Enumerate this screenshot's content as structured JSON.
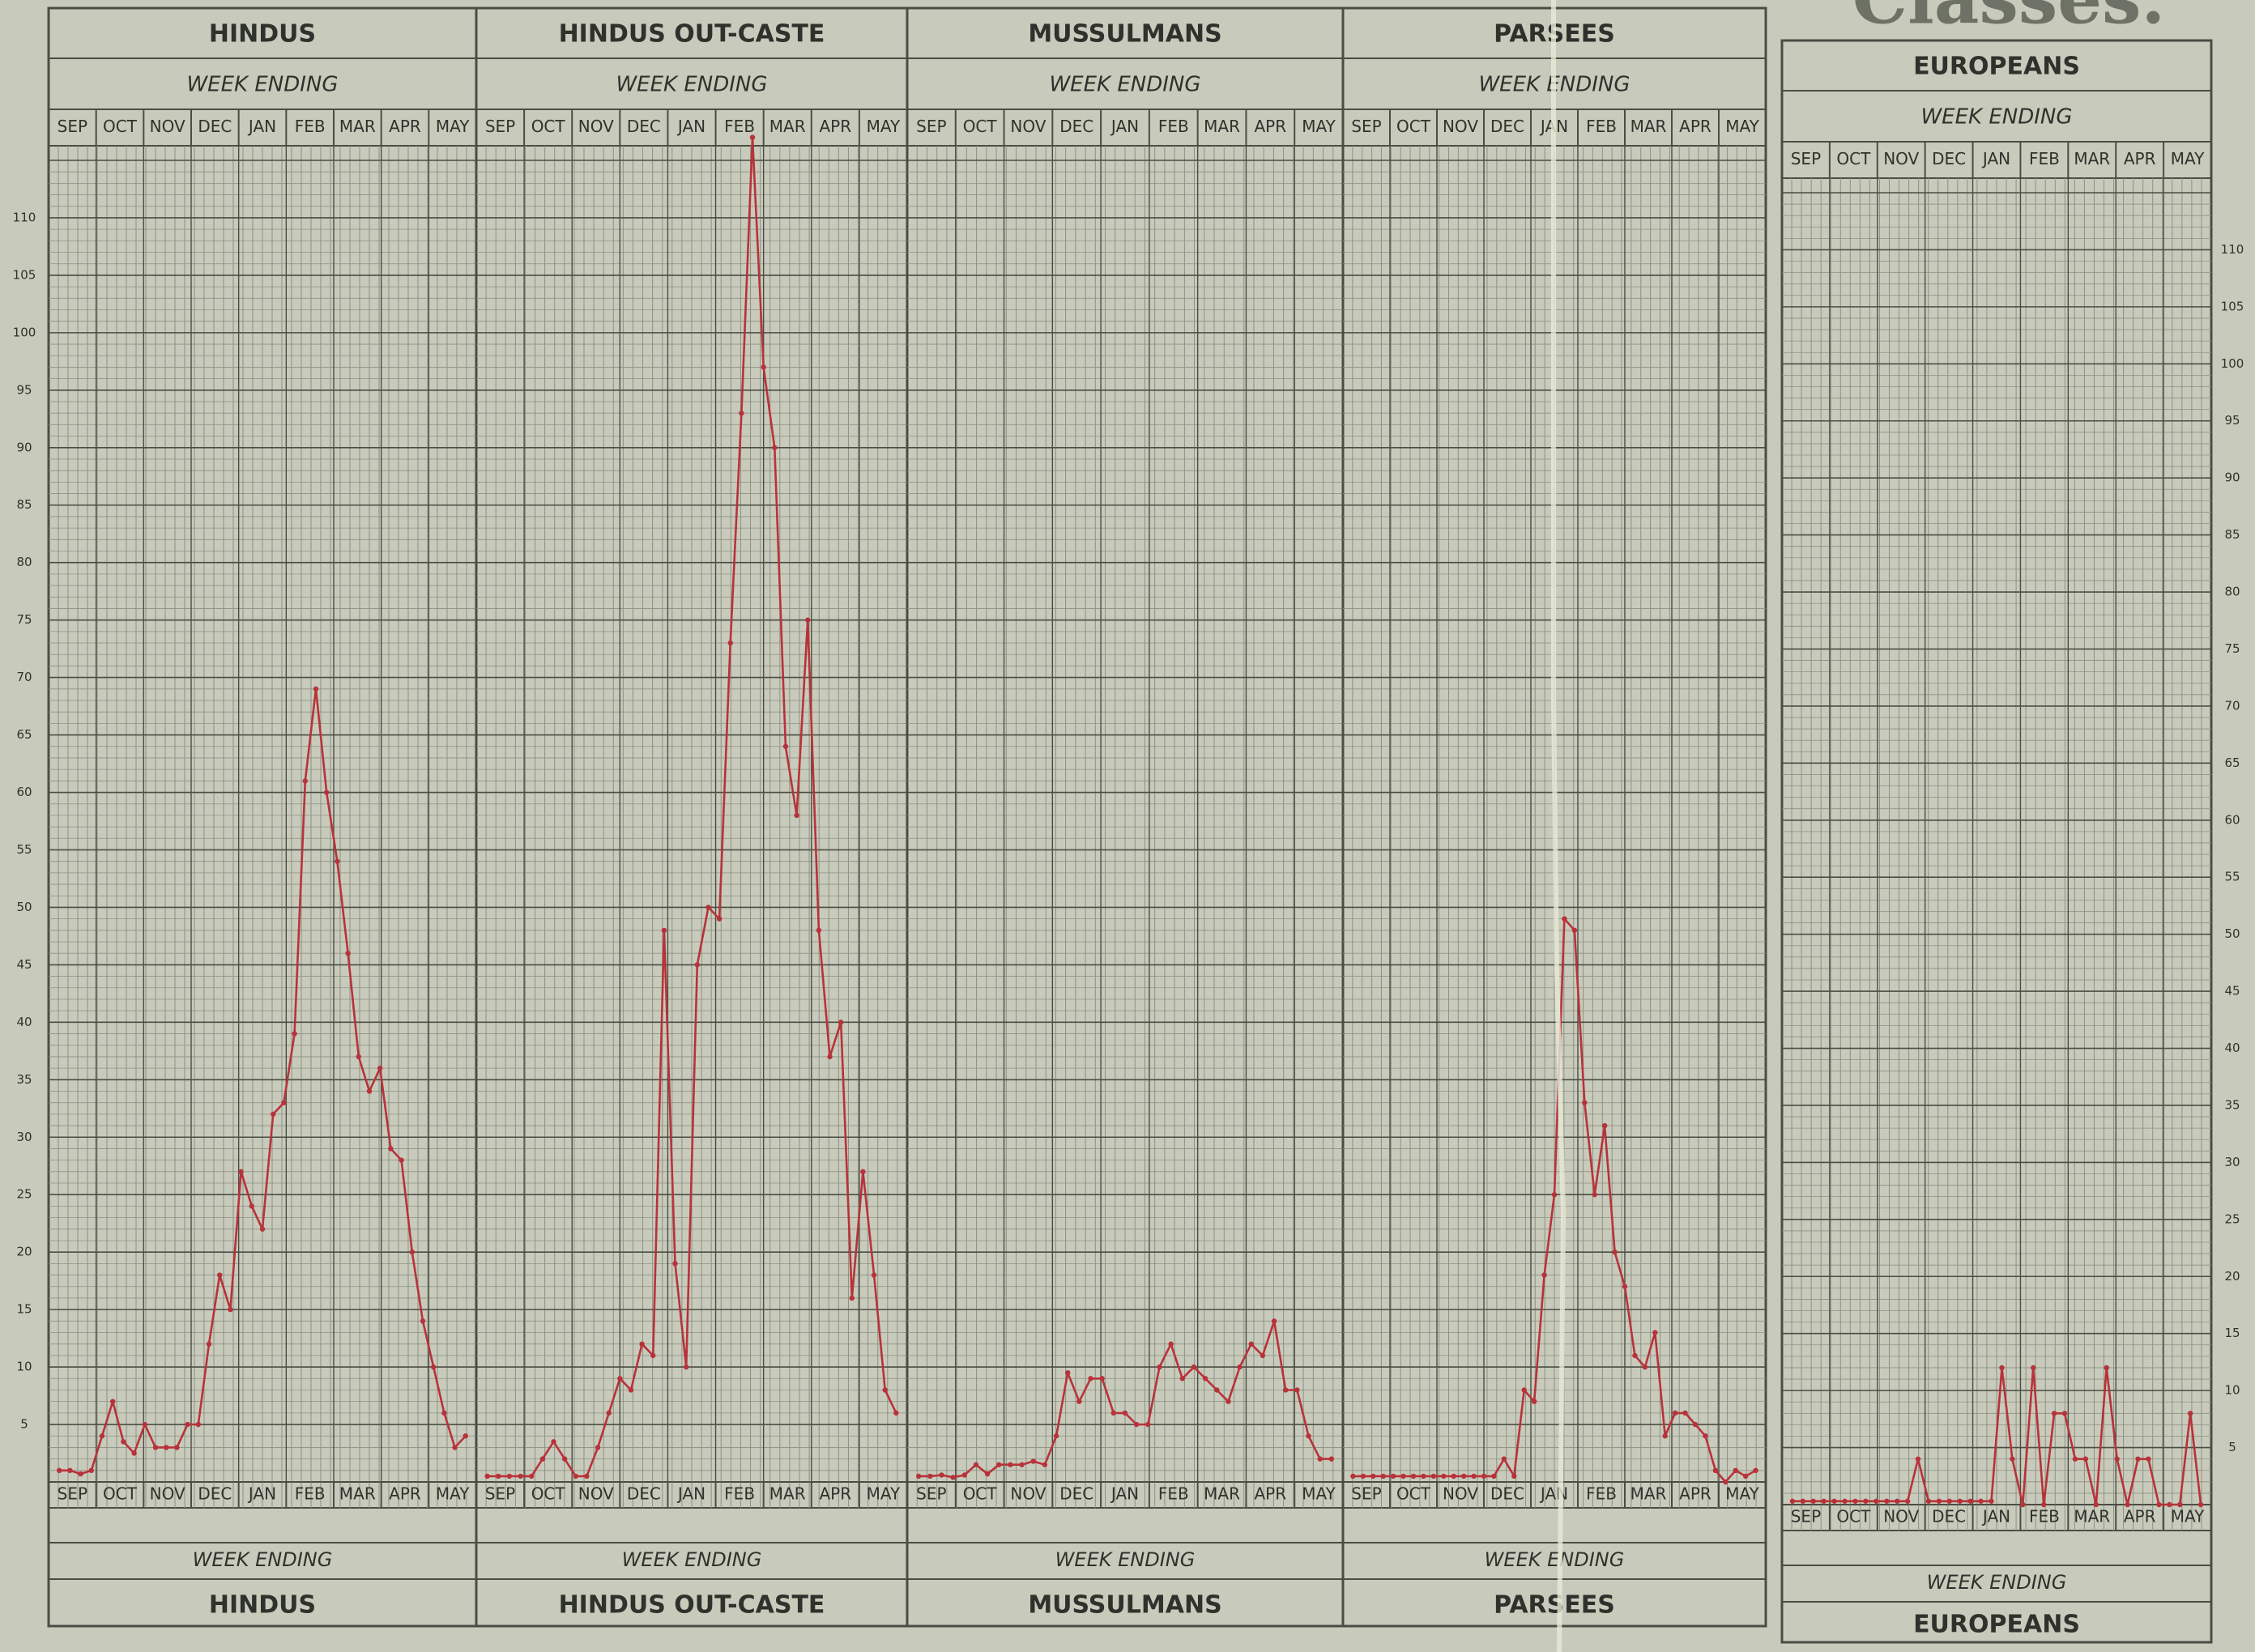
{
  "colors": {
    "paper": "#c8cbbb",
    "grid_minor": "#8d9184",
    "grid_major": "#4a4d44",
    "ink": "#2f322c",
    "line": "#b8323a"
  },
  "header_title_fragment": "Classes.",
  "week_ending": "WEEK ENDING",
  "chart_data": [
    {
      "type": "line",
      "title": "HINDUS",
      "footer": "HINDUS",
      "subtitle": "WEEK ENDING",
      "months": [
        "SEP",
        "OCT",
        "NOV",
        "DEC",
        "JAN",
        "FEB",
        "MAR",
        "APR",
        "MAY"
      ],
      "ylim": [
        0,
        115
      ],
      "yticks": [
        5,
        10,
        15,
        20,
        25,
        30,
        35,
        40,
        45,
        50,
        55,
        60,
        65,
        70,
        75,
        80,
        85,
        90,
        95,
        100,
        105,
        110
      ],
      "values": [
        1,
        1,
        0.7,
        1,
        4,
        7,
        3.5,
        2.5,
        5,
        3,
        3,
        3,
        5,
        5,
        12,
        18,
        15,
        27,
        24,
        22,
        32,
        33,
        39,
        61,
        69,
        60,
        54,
        46,
        37,
        34,
        36,
        29,
        28,
        20,
        14,
        10,
        6,
        3,
        4
      ]
    },
    {
      "type": "line",
      "title": "HINDUS OUT-CASTE",
      "footer": "HINDUS OUT-CASTE",
      "subtitle": "WEEK ENDING",
      "months": [
        "SEP",
        "OCT",
        "NOV",
        "DEC",
        "JAN",
        "FEB",
        "MAR",
        "APR",
        "MAY"
      ],
      "ylim": [
        0,
        115
      ],
      "yticks": [],
      "values": [
        0.5,
        0.5,
        0.5,
        0.5,
        0.5,
        2,
        3.5,
        2,
        0.5,
        0.5,
        3,
        6,
        9,
        8,
        12,
        11,
        48,
        19,
        10,
        45,
        50,
        49,
        73,
        93,
        117,
        97,
        90,
        64,
        58,
        75,
        48,
        37,
        40,
        16,
        27,
        18,
        8,
        6
      ]
    },
    {
      "type": "line",
      "title": "MUSSULMANS",
      "footer": "MUSSULMANS",
      "subtitle": "WEEK ENDING",
      "months": [
        "SEP",
        "OCT",
        "NOV",
        "DEC",
        "JAN",
        "FEB",
        "MAR",
        "APR",
        "MAY"
      ],
      "ylim": [
        0,
        115
      ],
      "yticks": [],
      "values": [
        0.5,
        0.5,
        0.6,
        0.4,
        0.6,
        1.5,
        0.7,
        1.5,
        1.5,
        1.5,
        1.8,
        1.5,
        4,
        9.5,
        7,
        9,
        9,
        6,
        6,
        5,
        5,
        10,
        12,
        9,
        10,
        9,
        8,
        7,
        10,
        12,
        11,
        14,
        8,
        8,
        4,
        2,
        2
      ]
    },
    {
      "type": "line",
      "title": "PARSEES",
      "footer": "PARSEES",
      "subtitle": "WEEK ENDING",
      "months": [
        "SEP",
        "OCT",
        "NOV",
        "DEC",
        "JAN",
        "FEB",
        "MAR",
        "APR",
        "MAY"
      ],
      "ylim": [
        0,
        115
      ],
      "yticks": [],
      "values": [
        0.5,
        0.5,
        0.5,
        0.5,
        0.5,
        0.5,
        0.5,
        0.5,
        0.5,
        0.5,
        0.5,
        0.5,
        0.5,
        0.5,
        0.5,
        2,
        0.5,
        8,
        7,
        18,
        25,
        49,
        48,
        33,
        25,
        31,
        20,
        17,
        11,
        10,
        13,
        4,
        6,
        6,
        5,
        4,
        1,
        0,
        1,
        0.5,
        1
      ]
    },
    {
      "type": "line",
      "title": "EUROPEANS",
      "footer": "EUROPEANS",
      "subtitle": "WEEK ENDING",
      "months": [
        "SEP",
        "OCT",
        "NOV",
        "DEC",
        "JAN",
        "FEB",
        "MAR",
        "APR",
        "MAY"
      ],
      "ylim": [
        0,
        115
      ],
      "yticks": [
        5,
        10,
        15,
        20,
        25,
        30,
        35,
        40,
        45,
        50,
        55,
        60,
        65,
        70,
        75,
        80,
        85,
        90,
        95,
        100,
        105,
        110
      ],
      "values": [
        0.3,
        0.3,
        0.3,
        0.3,
        0.3,
        0.3,
        0.3,
        0.3,
        0.3,
        0.3,
        0.3,
        0.3,
        4,
        0.3,
        0.3,
        0.3,
        0.3,
        0.3,
        0.3,
        0.3,
        12,
        4,
        0,
        12,
        0,
        8,
        8,
        4,
        4,
        0,
        12,
        4,
        0,
        4,
        4,
        0,
        0,
        0,
        8,
        0
      ]
    }
  ]
}
